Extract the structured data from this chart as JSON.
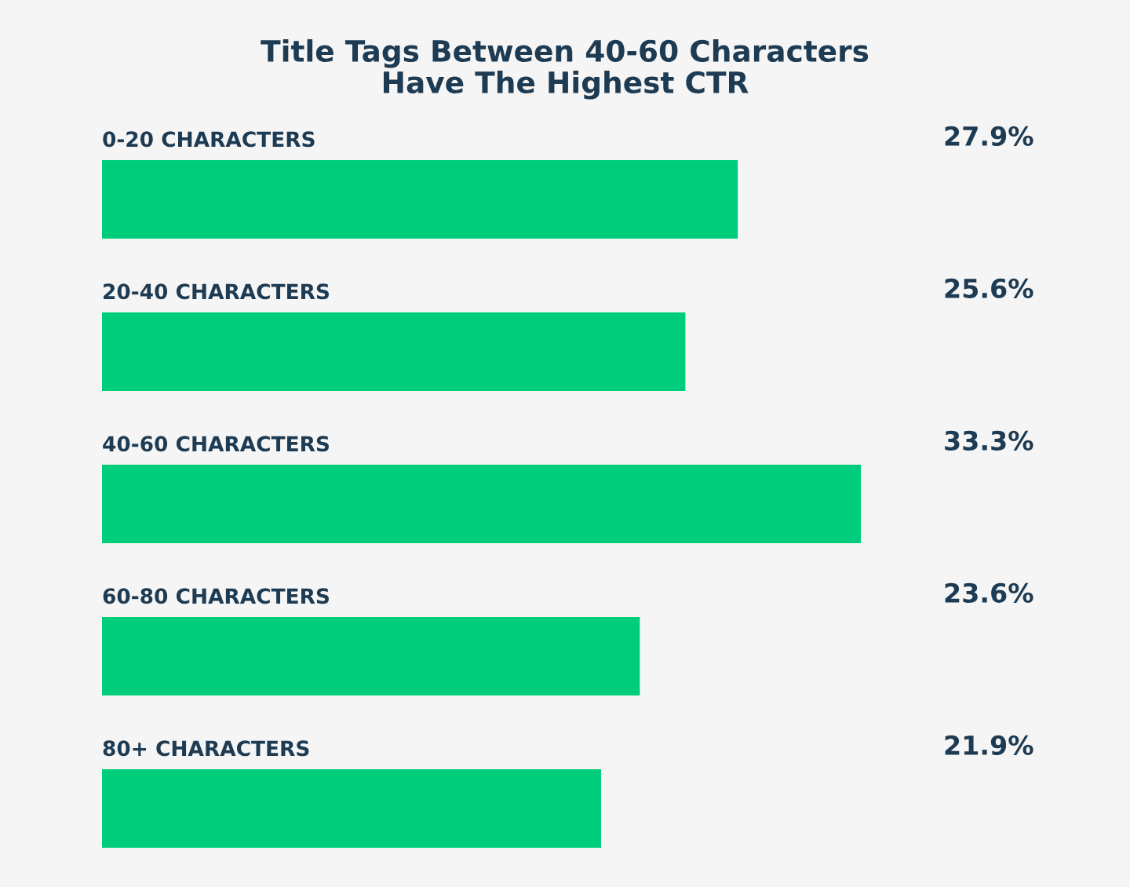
{
  "chart_data": {
    "type": "bar",
    "orientation": "horizontal",
    "title": "Title Tags Between 40-60 Characters\nHave The Highest CTR",
    "categories": [
      "0-20 CHARACTERS",
      "20-40 CHARACTERS",
      "40-60 CHARACTERS",
      "60-80 CHARACTERS",
      "80+ CHARACTERS"
    ],
    "values": [
      27.9,
      25.6,
      33.3,
      23.6,
      21.9
    ],
    "value_labels": [
      "27.9%",
      "25.6%",
      "33.3%",
      "23.6%",
      "21.9%"
    ],
    "color": "#00cd7c"
  }
}
